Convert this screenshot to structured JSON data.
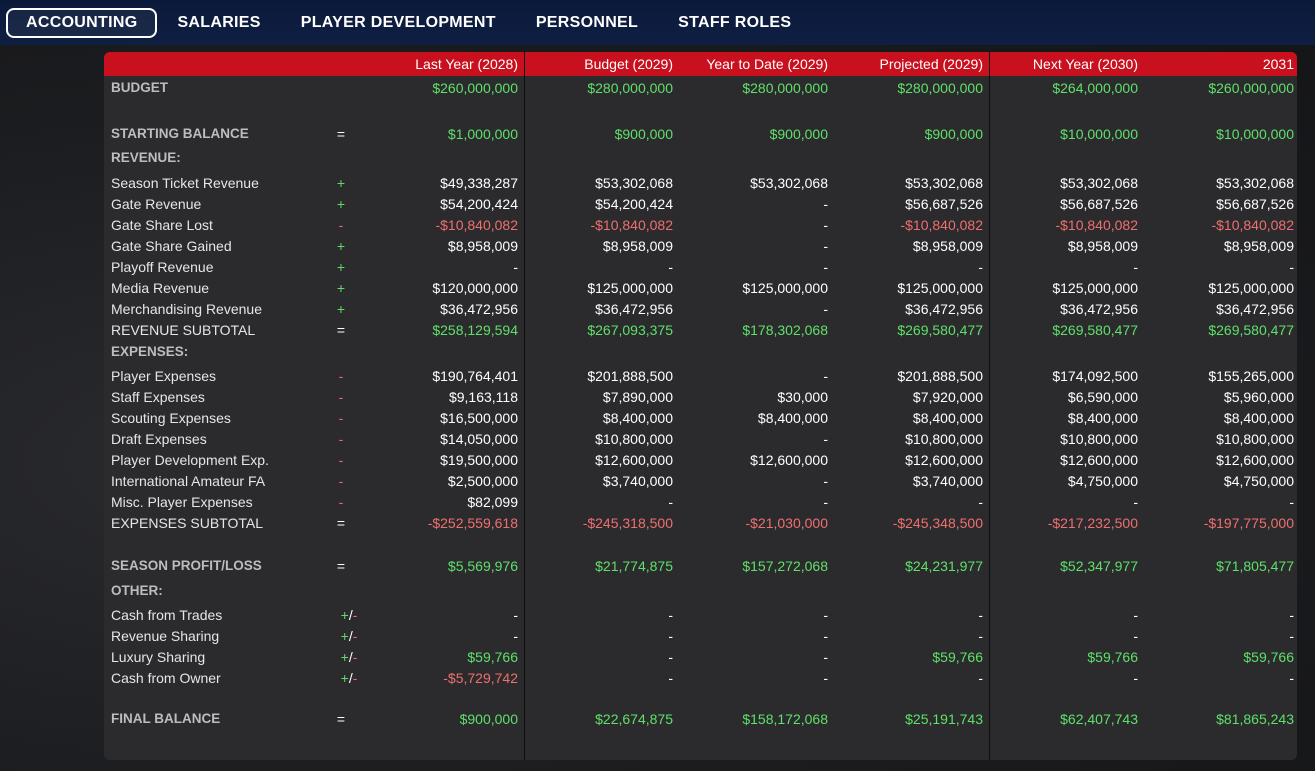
{
  "nav": {
    "tabs": [
      {
        "label": "ACCOUNTING",
        "active": true
      },
      {
        "label": "SALARIES",
        "active": false
      },
      {
        "label": "PLAYER DEVELOPMENT",
        "active": false
      },
      {
        "label": "PERSONNEL",
        "active": false
      },
      {
        "label": "STAFF ROLES",
        "active": false
      }
    ]
  },
  "colors": {
    "nav_bg": "#0b1a3a",
    "header_red": "#c8101e",
    "positive": "#5fe06a",
    "negative": "#ef6f6f",
    "panel_bg": "#2b2b2d"
  },
  "table": {
    "columns": [
      "Last Year (2028)",
      "Budget (2029)",
      "Year to Date (2029)",
      "Projected (2029)",
      "Next Year (2030)",
      "2031"
    ],
    "rows": [
      {
        "label": "BUDGET",
        "style": "section",
        "op": "",
        "values": [
          "$260,000,000",
          "$280,000,000",
          "$280,000,000",
          "$280,000,000",
          "$264,000,000",
          "$260,000,000"
        ],
        "tones": [
          "pos",
          "pos",
          "pos",
          "pos",
          "pos",
          "pos"
        ]
      },
      {
        "label": "STARTING BALANCE",
        "style": "section",
        "op": "=",
        "values": [
          "$1,000,000",
          "$900,000",
          "$900,000",
          "$900,000",
          "$10,000,000",
          "$10,000,000"
        ],
        "tones": [
          "pos",
          "pos",
          "pos",
          "pos",
          "pos",
          "pos"
        ]
      },
      {
        "label": "REVENUE:",
        "style": "section",
        "op": "",
        "values": [],
        "tones": []
      },
      {
        "label": "Season Ticket Revenue",
        "style": "item",
        "op": "+",
        "values": [
          "$49,338,287",
          "$53,302,068",
          "$53,302,068",
          "$53,302,068",
          "$53,302,068",
          "$53,302,068"
        ],
        "tones": [
          "w",
          "w",
          "w",
          "w",
          "w",
          "w"
        ]
      },
      {
        "label": "Gate Revenue",
        "style": "item",
        "op": "+",
        "values": [
          "$54,200,424",
          "$54,200,424",
          "-",
          "$56,687,526",
          "$56,687,526",
          "$56,687,526"
        ],
        "tones": [
          "w",
          "w",
          "w",
          "w",
          "w",
          "w"
        ]
      },
      {
        "label": "Gate Share Lost",
        "style": "item",
        "op": "-",
        "values": [
          "-$10,840,082",
          "-$10,840,082",
          "-",
          "-$10,840,082",
          "-$10,840,082",
          "-$10,840,082"
        ],
        "tones": [
          "neg",
          "neg",
          "w",
          "neg",
          "neg",
          "neg"
        ]
      },
      {
        "label": "Gate Share Gained",
        "style": "item",
        "op": "+",
        "values": [
          "$8,958,009",
          "$8,958,009",
          "-",
          "$8,958,009",
          "$8,958,009",
          "$8,958,009"
        ],
        "tones": [
          "w",
          "w",
          "w",
          "w",
          "w",
          "w"
        ]
      },
      {
        "label": "Playoff Revenue",
        "style": "item",
        "op": "+",
        "values": [
          "-",
          "-",
          "-",
          "-",
          "-",
          "-"
        ],
        "tones": [
          "w",
          "w",
          "w",
          "w",
          "w",
          "w"
        ]
      },
      {
        "label": "Media Revenue",
        "style": "item",
        "op": "+",
        "values": [
          "$120,000,000",
          "$125,000,000",
          "$125,000,000",
          "$125,000,000",
          "$125,000,000",
          "$125,000,000"
        ],
        "tones": [
          "w",
          "w",
          "w",
          "w",
          "w",
          "w"
        ]
      },
      {
        "label": "Merchandising Revenue",
        "style": "item",
        "op": "+",
        "values": [
          "$36,472,956",
          "$36,472,956",
          "-",
          "$36,472,956",
          "$36,472,956",
          "$36,472,956"
        ],
        "tones": [
          "w",
          "w",
          "w",
          "w",
          "w",
          "w"
        ]
      },
      {
        "label": "REVENUE SUBTOTAL",
        "style": "subtotal",
        "op": "=",
        "values": [
          "$258,129,594",
          "$267,093,375",
          "$178,302,068",
          "$269,580,477",
          "$269,580,477",
          "$269,580,477"
        ],
        "tones": [
          "pos",
          "pos",
          "pos",
          "pos",
          "pos",
          "pos"
        ]
      },
      {
        "label": "EXPENSES:",
        "style": "section",
        "op": "",
        "values": [],
        "tones": []
      },
      {
        "label": "Player Expenses",
        "style": "item",
        "op": "-",
        "values": [
          "$190,764,401",
          "$201,888,500",
          "-",
          "$201,888,500",
          "$174,092,500",
          "$155,265,000"
        ],
        "tones": [
          "w",
          "w",
          "w",
          "w",
          "w",
          "w"
        ]
      },
      {
        "label": "Staff Expenses",
        "style": "item",
        "op": "-",
        "values": [
          "$9,163,118",
          "$7,890,000",
          "$30,000",
          "$7,920,000",
          "$6,590,000",
          "$5,960,000"
        ],
        "tones": [
          "w",
          "w",
          "w",
          "w",
          "w",
          "w"
        ]
      },
      {
        "label": "Scouting Expenses",
        "style": "item",
        "op": "-",
        "values": [
          "$16,500,000",
          "$8,400,000",
          "$8,400,000",
          "$8,400,000",
          "$8,400,000",
          "$8,400,000"
        ],
        "tones": [
          "w",
          "w",
          "w",
          "w",
          "w",
          "w"
        ]
      },
      {
        "label": "Draft Expenses",
        "style": "item",
        "op": "-",
        "values": [
          "$14,050,000",
          "$10,800,000",
          "-",
          "$10,800,000",
          "$10,800,000",
          "$10,800,000"
        ],
        "tones": [
          "w",
          "w",
          "w",
          "w",
          "w",
          "w"
        ]
      },
      {
        "label": "Player Development Exp.",
        "style": "item",
        "op": "-",
        "values": [
          "$19,500,000",
          "$12,600,000",
          "$12,600,000",
          "$12,600,000",
          "$12,600,000",
          "$12,600,000"
        ],
        "tones": [
          "w",
          "w",
          "w",
          "w",
          "w",
          "w"
        ]
      },
      {
        "label": "International Amateur FA",
        "style": "item",
        "op": "-",
        "values": [
          "$2,500,000",
          "$3,740,000",
          "-",
          "$3,740,000",
          "$4,750,000",
          "$4,750,000"
        ],
        "tones": [
          "w",
          "w",
          "w",
          "w",
          "w",
          "w"
        ]
      },
      {
        "label": "Misc. Player Expenses",
        "style": "item",
        "op": "-",
        "values": [
          "$82,099",
          "-",
          "-",
          "-",
          "-",
          "-"
        ],
        "tones": [
          "w",
          "w",
          "w",
          "w",
          "w",
          "w"
        ]
      },
      {
        "label": "EXPENSES SUBTOTAL",
        "style": "subtotal",
        "op": "=",
        "values": [
          "-$252,559,618",
          "-$245,318,500",
          "-$21,030,000",
          "-$245,348,500",
          "-$217,232,500",
          "-$197,775,000"
        ],
        "tones": [
          "neg",
          "neg",
          "neg",
          "neg",
          "neg",
          "neg"
        ]
      },
      {
        "label": "SEASON PROFIT/LOSS",
        "style": "section",
        "op": "=",
        "values": [
          "$5,569,976",
          "$21,774,875",
          "$157,272,068",
          "$24,231,977",
          "$52,347,977",
          "$71,805,477"
        ],
        "tones": [
          "pos",
          "pos",
          "pos",
          "pos",
          "pos",
          "pos"
        ]
      },
      {
        "label": "OTHER:",
        "style": "section",
        "op": "",
        "values": [],
        "tones": []
      },
      {
        "label": "Cash from Trades",
        "style": "item",
        "op": "+/-",
        "values": [
          "-",
          "-",
          "-",
          "-",
          "-",
          "-"
        ],
        "tones": [
          "w",
          "w",
          "w",
          "w",
          "w",
          "w"
        ]
      },
      {
        "label": "Revenue Sharing",
        "style": "item",
        "op": "+/-",
        "values": [
          "-",
          "-",
          "-",
          "-",
          "-",
          "-"
        ],
        "tones": [
          "w",
          "w",
          "w",
          "w",
          "w",
          "w"
        ]
      },
      {
        "label": "Luxury Sharing",
        "style": "item",
        "op": "+/-",
        "values": [
          "$59,766",
          "-",
          "-",
          "$59,766",
          "$59,766",
          "$59,766"
        ],
        "tones": [
          "pos",
          "w",
          "w",
          "pos",
          "pos",
          "pos"
        ]
      },
      {
        "label": "Cash from Owner",
        "style": "item",
        "op": "+/-",
        "values": [
          "-$5,729,742",
          "-",
          "-",
          "-",
          "-",
          "-"
        ],
        "tones": [
          "neg",
          "w",
          "w",
          "w",
          "w",
          "w"
        ]
      },
      {
        "label": "FINAL BALANCE",
        "style": "section",
        "op": "=",
        "values": [
          "$900,000",
          "$22,674,875",
          "$158,172,068",
          "$25,191,743",
          "$62,407,743",
          "$81,865,243"
        ],
        "tones": [
          "pos",
          "pos",
          "pos",
          "pos",
          "pos",
          "pos"
        ]
      }
    ]
  }
}
